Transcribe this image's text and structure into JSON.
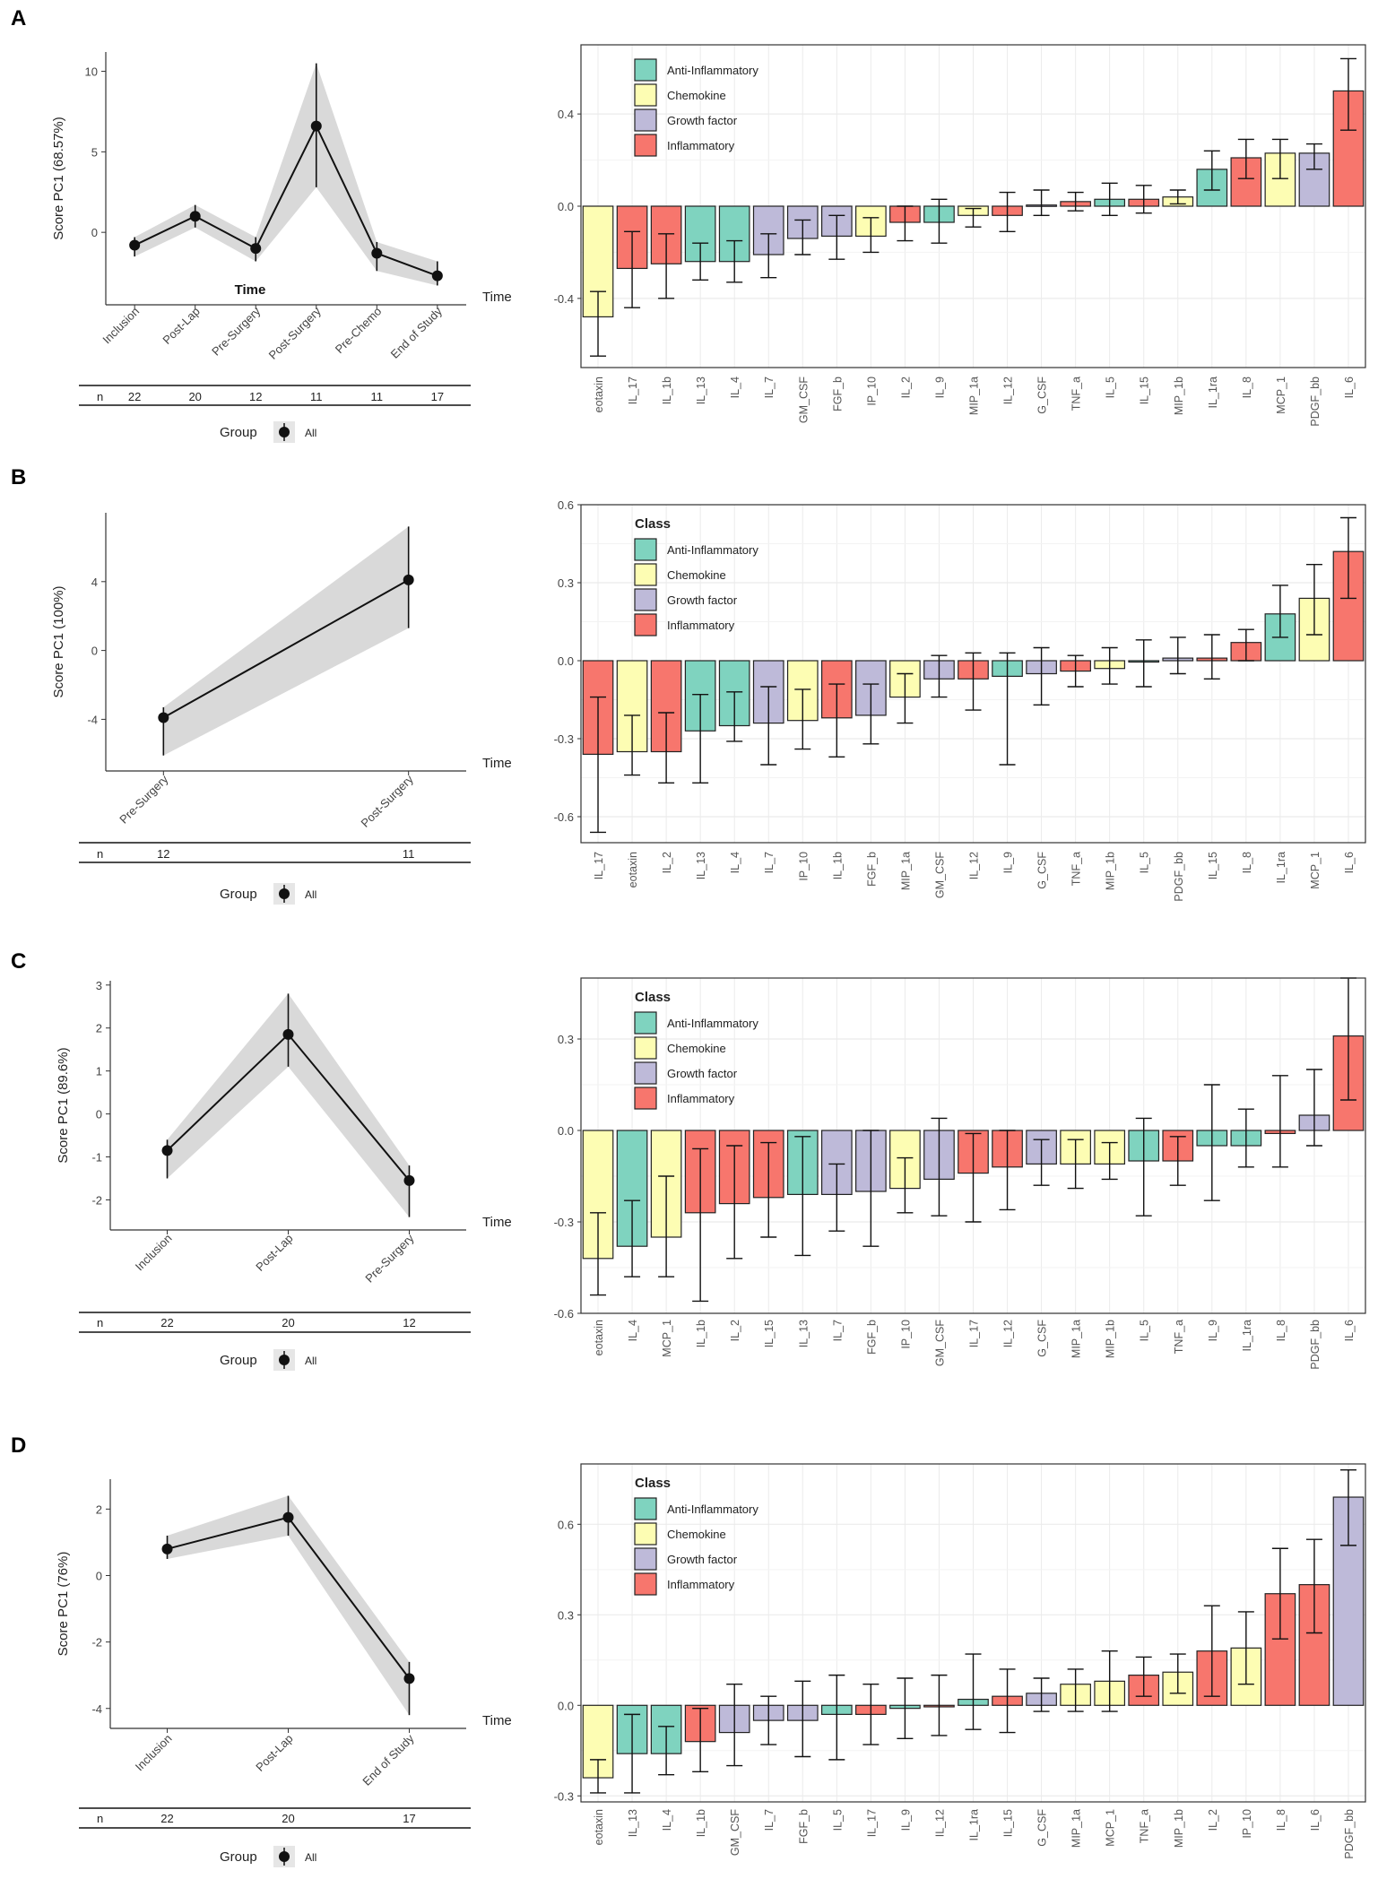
{
  "colors": {
    "Anti-Inflammatory": "#7fd3bf",
    "Chemokine": "#fdfdb3",
    "Growth factor": "#bebad9",
    "Inflammatory": "#f7766d",
    "ribbon": "#d9d9d9",
    "grid": "#ebebeb"
  },
  "legend": {
    "title": "Class",
    "entries": [
      "Anti-Inflammatory",
      "Chemokine",
      "Growth factor",
      "Inflammatory"
    ],
    "group_title": "Group",
    "group_entry": "All"
  },
  "chart_data": [
    {
      "panel": "A",
      "line": {
        "type": "line",
        "ylabel": "Score PC1 (68.57%)",
        "xlabel": "Time",
        "inner_label": "Time",
        "categories": [
          "Inclusion",
          "Post-Lap",
          "Pre-Surgery",
          "Post-Surgery",
          "Pre-Chemo",
          "End of Study"
        ],
        "values": [
          -0.8,
          1.0,
          -1.0,
          6.6,
          -1.3,
          -2.7
        ],
        "lower": [
          -1.5,
          0.3,
          -1.8,
          2.8,
          -2.4,
          -3.3
        ],
        "upper": [
          -0.3,
          1.7,
          -0.3,
          10.5,
          -0.6,
          -1.8
        ],
        "ylim": [
          -4.5,
          11.2
        ],
        "yticks": [
          0,
          5,
          10
        ],
        "n_label": "n",
        "n": [
          "22",
          "20",
          "12",
          "11",
          "11",
          "17"
        ]
      },
      "bar": {
        "type": "bar",
        "show_legend_title": false,
        "ylim": [
          -0.7,
          0.7
        ],
        "yticks": [
          -0.4,
          0.0,
          0.4
        ],
        "ytick_labels": [
          "-0.4",
          "0.0",
          "0.4"
        ],
        "categories": [
          "eotaxin",
          "IL_17",
          "IL_1b",
          "IL_13",
          "IL_4",
          "IL_7",
          "GM_CSF",
          "FGF_b",
          "IP_10",
          "IL_2",
          "IL_9",
          "MIP_1a",
          "IL_12",
          "G_CSF",
          "TNF_a",
          "IL_5",
          "IL_15",
          "MIP_1b",
          "IL_1ra",
          "IL_8",
          "MCP_1",
          "PDGF_bb",
          "IL_6"
        ],
        "classes": [
          "Chemokine",
          "Inflammatory",
          "Inflammatory",
          "Anti-Inflammatory",
          "Anti-Inflammatory",
          "Growth factor",
          "Growth factor",
          "Growth factor",
          "Chemokine",
          "Inflammatory",
          "Anti-Inflammatory",
          "Chemokine",
          "Inflammatory",
          "Growth factor",
          "Inflammatory",
          "Anti-Inflammatory",
          "Inflammatory",
          "Chemokine",
          "Anti-Inflammatory",
          "Inflammatory",
          "Chemokine",
          "Growth factor",
          "Inflammatory"
        ],
        "values": [
          -0.48,
          -0.27,
          -0.25,
          -0.24,
          -0.24,
          -0.21,
          -0.14,
          -0.13,
          -0.13,
          -0.07,
          -0.07,
          -0.04,
          -0.04,
          0.005,
          0.02,
          0.03,
          0.03,
          0.04,
          0.16,
          0.21,
          0.23,
          0.23,
          0.5
        ],
        "lower": [
          -0.65,
          -0.44,
          -0.4,
          -0.32,
          -0.33,
          -0.31,
          -0.21,
          -0.23,
          -0.2,
          -0.15,
          -0.16,
          -0.09,
          -0.11,
          -0.04,
          -0.02,
          -0.04,
          -0.03,
          0.01,
          0.07,
          0.12,
          0.12,
          0.16,
          0.33
        ],
        "upper": [
          -0.37,
          -0.11,
          -0.12,
          -0.16,
          -0.15,
          -0.12,
          -0.06,
          -0.04,
          -0.05,
          0.0,
          0.03,
          -0.01,
          0.06,
          0.07,
          0.06,
          0.1,
          0.09,
          0.07,
          0.24,
          0.29,
          0.29,
          0.27,
          0.64
        ]
      }
    },
    {
      "panel": "B",
      "line": {
        "type": "line",
        "ylabel": "Score PC1 (100%)",
        "xlabel": "Time",
        "inner_label": "",
        "categories": [
          "Pre-Surgery",
          "Post-Surgery"
        ],
        "values": [
          -3.9,
          4.1
        ],
        "lower": [
          -6.1,
          1.3
        ],
        "upper": [
          -3.3,
          7.2
        ],
        "ylim": [
          -7.0,
          8.0
        ],
        "yticks": [
          -4,
          0,
          4
        ],
        "n_label": "n",
        "n": [
          "12",
          "11"
        ]
      },
      "bar": {
        "type": "bar",
        "show_legend_title": true,
        "ylim": [
          -0.7,
          0.6
        ],
        "yticks": [
          -0.6,
          -0.3,
          0.0,
          0.3,
          0.6
        ],
        "ytick_labels": [
          "-0.6",
          "-0.3",
          "0.0",
          "0.3",
          "0.6"
        ],
        "categories": [
          "IL_17",
          "eotaxin",
          "IL_2",
          "IL_13",
          "IL_4",
          "IL_7",
          "IP_10",
          "IL_1b",
          "FGF_b",
          "MIP_1a",
          "GM_CSF",
          "IL_12",
          "IL_9",
          "G_CSF",
          "TNF_a",
          "MIP_1b",
          "IL_5",
          "PDGF_bb",
          "IL_15",
          "IL_8",
          "IL_1ra",
          "MCP_1",
          "IL_6"
        ],
        "classes": [
          "Inflammatory",
          "Chemokine",
          "Inflammatory",
          "Anti-Inflammatory",
          "Anti-Inflammatory",
          "Growth factor",
          "Chemokine",
          "Inflammatory",
          "Growth factor",
          "Chemokine",
          "Growth factor",
          "Inflammatory",
          "Anti-Inflammatory",
          "Growth factor",
          "Inflammatory",
          "Chemokine",
          "Anti-Inflammatory",
          "Growth factor",
          "Inflammatory",
          "Inflammatory",
          "Anti-Inflammatory",
          "Chemokine",
          "Inflammatory"
        ],
        "values": [
          -0.36,
          -0.35,
          -0.35,
          -0.27,
          -0.25,
          -0.24,
          -0.23,
          -0.22,
          -0.21,
          -0.14,
          -0.07,
          -0.07,
          -0.06,
          -0.05,
          -0.04,
          -0.03,
          0.0,
          0.01,
          0.01,
          0.07,
          0.18,
          0.24,
          0.42
        ],
        "lower": [
          -0.66,
          -0.44,
          -0.47,
          -0.47,
          -0.31,
          -0.4,
          -0.34,
          -0.37,
          -0.32,
          -0.24,
          -0.14,
          -0.19,
          -0.4,
          -0.17,
          -0.1,
          -0.09,
          -0.1,
          -0.05,
          -0.07,
          0.0,
          0.09,
          0.1,
          0.24
        ],
        "upper": [
          -0.14,
          -0.21,
          -0.2,
          -0.13,
          -0.12,
          -0.1,
          -0.11,
          -0.09,
          -0.09,
          -0.05,
          0.02,
          0.03,
          0.03,
          0.05,
          0.02,
          0.05,
          0.08,
          0.09,
          0.1,
          0.12,
          0.29,
          0.37,
          0.55
        ]
      }
    },
    {
      "panel": "C",
      "line": {
        "type": "line",
        "ylabel": "Score PC1 (89.6%)",
        "xlabel": "Time",
        "inner_label": "",
        "categories": [
          "Inclusion",
          "Post-Lap",
          "Pre-Surgery"
        ],
        "values": [
          -0.85,
          1.85,
          -1.55
        ],
        "lower": [
          -1.5,
          1.1,
          -2.4
        ],
        "upper": [
          -0.6,
          2.8,
          -1.2
        ],
        "ylim": [
          -2.7,
          3.1
        ],
        "yticks": [
          -2,
          -1,
          0,
          1,
          2,
          3
        ],
        "n_label": "n",
        "n": [
          "22",
          "20",
          "12"
        ]
      },
      "bar": {
        "type": "bar",
        "show_legend_title": true,
        "ylim": [
          -0.6,
          0.5
        ],
        "yticks": [
          -0.6,
          -0.3,
          0.0,
          0.3
        ],
        "ytick_labels": [
          "-0.6",
          "-0.3",
          "0.0",
          "0.3"
        ],
        "categories": [
          "eotaxin",
          "IL_4",
          "MCP_1",
          "IL_1b",
          "IL_2",
          "IL_15",
          "IL_13",
          "IL_7",
          "FGF_b",
          "IP_10",
          "GM_CSF",
          "IL_17",
          "IL_12",
          "G_CSF",
          "MIP_1a",
          "MIP_1b",
          "IL_5",
          "TNF_a",
          "IL_9",
          "IL_1ra",
          "IL_8",
          "PDGF_bb",
          "IL_6"
        ],
        "classes": [
          "Chemokine",
          "Anti-Inflammatory",
          "Chemokine",
          "Inflammatory",
          "Inflammatory",
          "Inflammatory",
          "Anti-Inflammatory",
          "Growth factor",
          "Growth factor",
          "Chemokine",
          "Growth factor",
          "Inflammatory",
          "Inflammatory",
          "Growth factor",
          "Chemokine",
          "Chemokine",
          "Anti-Inflammatory",
          "Inflammatory",
          "Anti-Inflammatory",
          "Anti-Inflammatory",
          "Inflammatory",
          "Growth factor",
          "Inflammatory"
        ],
        "values": [
          -0.42,
          -0.38,
          -0.35,
          -0.27,
          -0.24,
          -0.22,
          -0.21,
          -0.21,
          -0.2,
          -0.19,
          -0.16,
          -0.14,
          -0.12,
          -0.11,
          -0.11,
          -0.11,
          -0.1,
          -0.1,
          -0.05,
          -0.05,
          -0.01,
          0.05,
          0.31
        ],
        "lower": [
          -0.54,
          -0.48,
          -0.48,
          -0.56,
          -0.42,
          -0.35,
          -0.41,
          -0.33,
          -0.38,
          -0.27,
          -0.28,
          -0.3,
          -0.26,
          -0.18,
          -0.19,
          -0.16,
          -0.28,
          -0.18,
          -0.23,
          -0.12,
          -0.12,
          -0.05,
          0.1
        ],
        "upper": [
          -0.27,
          -0.23,
          -0.15,
          -0.06,
          -0.05,
          -0.04,
          -0.02,
          -0.11,
          0.0,
          -0.09,
          0.04,
          -0.01,
          0.0,
          -0.03,
          -0.03,
          -0.04,
          0.04,
          -0.02,
          0.15,
          0.07,
          0.18,
          0.2,
          0.5
        ]
      }
    },
    {
      "panel": "D",
      "line": {
        "type": "line",
        "ylabel": "Score PC1 (76%)",
        "xlabel": "Time",
        "inner_label": "",
        "categories": [
          "Inclusion",
          "Post-Lap",
          "End of Study"
        ],
        "values": [
          0.8,
          1.75,
          -3.1
        ],
        "lower": [
          0.5,
          1.2,
          -4.2
        ],
        "upper": [
          1.2,
          2.4,
          -2.6
        ],
        "ylim": [
          -4.6,
          2.9
        ],
        "yticks": [
          -4,
          -2,
          0,
          2
        ],
        "n_label": "n",
        "n": [
          "22",
          "20",
          "17"
        ]
      },
      "bar": {
        "type": "bar",
        "show_legend_title": true,
        "ylim": [
          -0.32,
          0.8
        ],
        "yticks": [
          -0.3,
          0.0,
          0.3,
          0.6
        ],
        "ytick_labels": [
          "-0.3",
          "0.0",
          "0.3",
          "0.6"
        ],
        "categories": [
          "eotaxin",
          "IL_13",
          "IL_4",
          "IL_1b",
          "GM_CSF",
          "IL_7",
          "FGF_b",
          "IL_5",
          "IL_17",
          "IL_9",
          "IL_12",
          "IL_1ra",
          "IL_15",
          "G_CSF",
          "MIP_1a",
          "MCP_1",
          "TNF_a",
          "MIP_1b",
          "IL_2",
          "IP_10",
          "IL_8",
          "IL_6",
          "PDGF_bb"
        ],
        "classes": [
          "Chemokine",
          "Anti-Inflammatory",
          "Anti-Inflammatory",
          "Inflammatory",
          "Growth factor",
          "Growth factor",
          "Growth factor",
          "Anti-Inflammatory",
          "Inflammatory",
          "Anti-Inflammatory",
          "Inflammatory",
          "Anti-Inflammatory",
          "Inflammatory",
          "Growth factor",
          "Chemokine",
          "Chemokine",
          "Inflammatory",
          "Chemokine",
          "Inflammatory",
          "Chemokine",
          "Inflammatory",
          "Inflammatory",
          "Growth factor"
        ],
        "values": [
          -0.24,
          -0.16,
          -0.16,
          -0.12,
          -0.09,
          -0.05,
          -0.05,
          -0.03,
          -0.03,
          -0.01,
          -0.005,
          0.02,
          0.03,
          0.04,
          0.07,
          0.08,
          0.1,
          0.11,
          0.18,
          0.19,
          0.37,
          0.4,
          0.69
        ],
        "lower": [
          -0.29,
          -0.29,
          -0.23,
          -0.22,
          -0.2,
          -0.13,
          -0.17,
          -0.18,
          -0.13,
          -0.11,
          -0.1,
          -0.08,
          -0.09,
          -0.02,
          -0.02,
          -0.02,
          0.03,
          0.04,
          0.03,
          0.07,
          0.22,
          0.24,
          0.53
        ],
        "upper": [
          -0.18,
          -0.03,
          -0.07,
          -0.01,
          0.07,
          0.03,
          0.08,
          0.1,
          0.07,
          0.09,
          0.1,
          0.17,
          0.12,
          0.09,
          0.12,
          0.18,
          0.16,
          0.17,
          0.33,
          0.31,
          0.52,
          0.55,
          0.78
        ]
      }
    }
  ]
}
